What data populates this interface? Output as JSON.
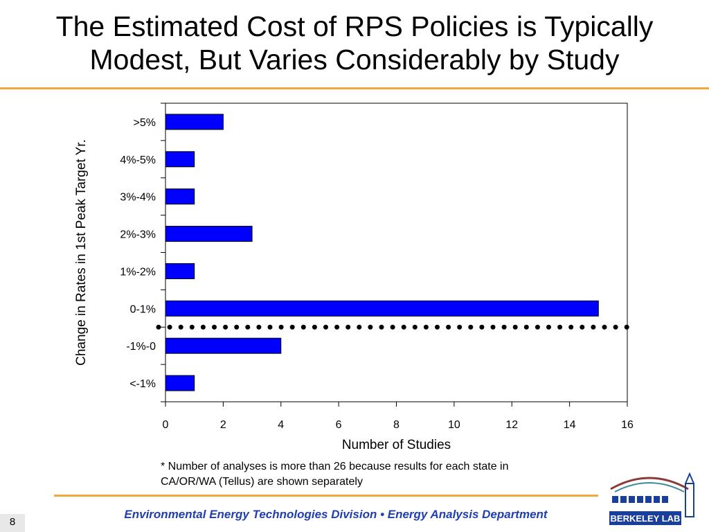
{
  "slide": {
    "title_line1": "The Estimated Cost of RPS Policies is Typically",
    "title_line2": "Modest, But Varies Considerably by Study",
    "footnote_line1": "* Number of analyses is more than 26 because results for each state in",
    "footnote_line2": "CA/OR/WA (Tellus) are shown separately",
    "footer": "Environmental Energy Technologies Division  •  Energy Analysis Department",
    "page_number": "8",
    "logo_text": "BERKELEY LAB"
  },
  "colors": {
    "bar_fill": "#0000ff",
    "accent_orange": "#f4a73a",
    "footer_blue": "#1f3fb0"
  },
  "chart_data": {
    "type": "bar",
    "orientation": "horizontal",
    "categories": [
      ">5%",
      "4%-5%",
      "3%-4%",
      "2%-3%",
      "1%-2%",
      "0-1%",
      "-1%-0",
      "<-1%"
    ],
    "values": [
      2,
      1,
      1,
      3,
      1,
      15,
      4,
      1
    ],
    "xlabel": "Number of Studies",
    "ylabel": "Change in Rates in 1st Peak Target Yr.",
    "xlim": [
      0,
      16
    ],
    "xticks": [
      0,
      2,
      4,
      6,
      8,
      10,
      12,
      14,
      16
    ],
    "reference_line": {
      "between_categories": [
        "0-1%",
        "-1%-0"
      ],
      "style": "dotted"
    },
    "grid": false,
    "legend": "none"
  }
}
